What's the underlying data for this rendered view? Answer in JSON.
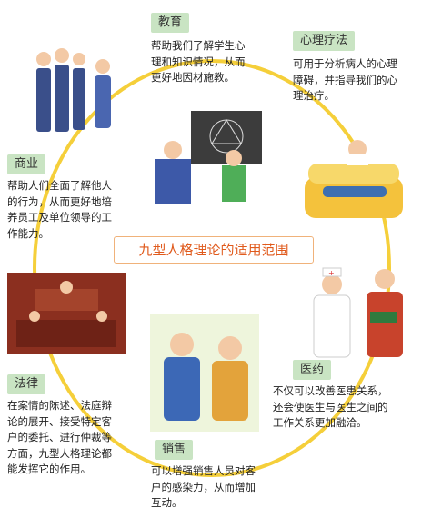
{
  "center_title": "九型人格理论的适用范围",
  "sections": {
    "education": {
      "label": "教育",
      "text": [
        "帮助我们了解学生心",
        "理和知识情况，从而",
        "更好地因材施教。"
      ]
    },
    "therapy": {
      "label": "心理疗法",
      "text": [
        "可用于分析病人的心理",
        "障碍，并指导我们的心",
        "理治疗。"
      ]
    },
    "business": {
      "label": "商业",
      "text": [
        "帮助人们全面了解他人",
        "的行为，从而更好地培",
        "养员工及单位领导的工",
        "作能力。"
      ]
    },
    "medicine": {
      "label": "医药",
      "text": [
        "不仅可以改善医患关系，",
        "还会使医生与医生之间的",
        "工作关系更加融洽。"
      ]
    },
    "law": {
      "label": "法律",
      "text": [
        "在案情的陈述、法庭辩",
        "论的展开、接受特定客",
        "户的委托、进行仲裁等",
        "方面，九型人格理论都",
        "能发挥它的作用。"
      ]
    },
    "sales": {
      "label": "销售",
      "text": [
        "可以增强销售人员对客",
        "户的感染力，从而增加",
        "互动。"
      ]
    }
  },
  "colors": {
    "ring": "#f5cf3a",
    "label_bg": "#c9e4c3",
    "title_text": "#e05a1c",
    "title_border": "#f0b27a"
  }
}
